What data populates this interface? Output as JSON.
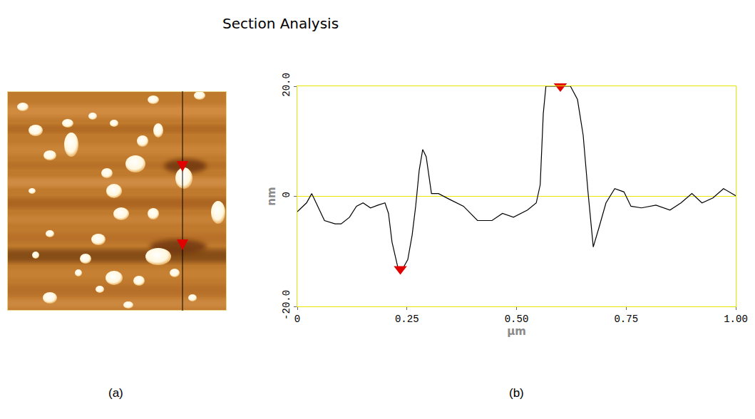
{
  "panel_labels": [
    "(a)",
    "(b)"
  ],
  "chart_data": {
    "type": "line",
    "title": "Section Analysis",
    "xlabel": "µm",
    "ylabel": "nm",
    "color": "#000000",
    "x": [
      0,
      0.021,
      0.033,
      0.046,
      0.062,
      0.086,
      0.1,
      0.119,
      0.135,
      0.15,
      0.167,
      0.184,
      0.2,
      0.208,
      0.216,
      0.229,
      0.24,
      0.252,
      0.262,
      0.27,
      0.278,
      0.286,
      0.294,
      0.306,
      0.322,
      0.346,
      0.379,
      0.411,
      0.444,
      0.468,
      0.493,
      0.525,
      0.545,
      0.554,
      0.561,
      0.567,
      0.59,
      0.623,
      0.639,
      0.652,
      0.663,
      0.675,
      0.688,
      0.704,
      0.724,
      0.745,
      0.761,
      0.785,
      0.818,
      0.85,
      0.875,
      0.9,
      0.923,
      0.948,
      0.972,
      1.0
    ],
    "values": [
      -2.8,
      -1.2,
      0.5,
      -1.8,
      -4.4,
      -5,
      -5,
      -3.8,
      -1.8,
      -1.2,
      -2.1,
      -1.6,
      -1.2,
      -3.1,
      -8.3,
      -12.8,
      -13.2,
      -11.5,
      -7,
      -1.8,
      4.7,
      8.5,
      7.2,
      0.5,
      0.5,
      -0.5,
      -1.8,
      -4.4,
      -4.4,
      -3.1,
      -3.8,
      -2.5,
      -1.2,
      2.1,
      15,
      20,
      20,
      20,
      17.6,
      11.1,
      0.8,
      -9.2,
      -5.7,
      -1.2,
      1.4,
      0.8,
      -1.8,
      -2.1,
      -1.6,
      -2.5,
      -1.2,
      0.5,
      -1.2,
      -0.3,
      1.4,
      0.1
    ],
    "cursor_marks": {
      "x": [
        0.235,
        0.6
      ],
      "values": [
        -13.2,
        20
      ],
      "color": "#e00000",
      "marker": "triangle-down"
    },
    "xlim": [
      0,
      1
    ],
    "ylim": [
      -20,
      20
    ],
    "xticks": [
      0,
      0.25,
      {
        "value": 0.5,
        "label": "0.50"
      },
      0.75,
      {
        "value": 1,
        "label": "1.00"
      }
    ],
    "yticks": [
      {
        "value": -20,
        "label": "-20.0"
      },
      0,
      {
        "value": 20,
        "label": "20.0"
      }
    ],
    "grid": false
  }
}
